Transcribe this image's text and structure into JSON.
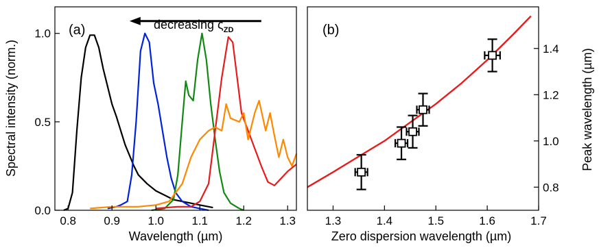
{
  "chart_data": [
    {
      "type": "line",
      "panel_label": "(a)",
      "xlabel": "Wavelength (µm)",
      "ylabel": "Spectral intensity (norm.)",
      "xlim": [
        0.77,
        1.32
      ],
      "ylim": [
        0,
        1.15
      ],
      "xticks": [
        0.8,
        0.9,
        1.0,
        1.1,
        1.2,
        1.3
      ],
      "xtick_labels": [
        "0.8",
        "0.9",
        "1.0",
        "1.1",
        "1.2",
        "1.3"
      ],
      "yticks": [
        0.0,
        0.5,
        1.0
      ],
      "ytick_labels": [
        "0.0",
        "0.5",
        "1.0"
      ],
      "grid": false,
      "annotation": {
        "text": "decreasing ς",
        "subscript": "ZD",
        "arrow": "left",
        "arrow_from": 1.24,
        "arrow_to": 0.94,
        "y": 1.12
      },
      "series": [
        {
          "color": "#000000",
          "points": [
            [
              0.79,
              0.0
            ],
            [
              0.8,
              0.01
            ],
            [
              0.81,
              0.1
            ],
            [
              0.82,
              0.45
            ],
            [
              0.83,
              0.75
            ],
            [
              0.84,
              0.92
            ],
            [
              0.85,
              0.99
            ],
            [
              0.86,
              0.99
            ],
            [
              0.87,
              0.92
            ],
            [
              0.88,
              0.8
            ],
            [
              0.89,
              0.7
            ],
            [
              0.9,
              0.6
            ],
            [
              0.91,
              0.53
            ],
            [
              0.92,
              0.45
            ],
            [
              0.93,
              0.37
            ],
            [
              0.94,
              0.31
            ],
            [
              0.95,
              0.25
            ],
            [
              0.96,
              0.2
            ],
            [
              0.98,
              0.15
            ],
            [
              1.0,
              0.11
            ],
            [
              1.02,
              0.085
            ],
            [
              1.04,
              0.06
            ],
            [
              1.06,
              0.05
            ],
            [
              1.08,
              0.04
            ],
            [
              1.1,
              0.03
            ],
            [
              1.12,
              0.02
            ],
            [
              1.13,
              0.015
            ]
          ]
        },
        {
          "color": "#0022dd",
          "points": [
            [
              0.89,
              0.01
            ],
            [
              0.91,
              0.02
            ],
            [
              0.92,
              0.03
            ],
            [
              0.935,
              0.05
            ],
            [
              0.945,
              0.2
            ],
            [
              0.955,
              0.5
            ],
            [
              0.965,
              0.9
            ],
            [
              0.975,
              1.0
            ],
            [
              0.985,
              0.95
            ],
            [
              0.995,
              0.72
            ],
            [
              1.005,
              0.6
            ],
            [
              1.015,
              0.45
            ],
            [
              1.025,
              0.3
            ],
            [
              1.035,
              0.18
            ],
            [
              1.045,
              0.1
            ],
            [
              1.06,
              0.05
            ],
            [
              1.08,
              0.02
            ],
            [
              1.1,
              0.01
            ],
            [
              1.12,
              0.0
            ]
          ]
        },
        {
          "color": "#118811",
          "points": [
            [
              0.99,
              0.0
            ],
            [
              1.02,
              0.01
            ],
            [
              1.04,
              0.06
            ],
            [
              1.05,
              0.2
            ],
            [
              1.06,
              0.5
            ],
            [
              1.068,
              0.73
            ],
            [
              1.075,
              0.65
            ],
            [
              1.085,
              0.62
            ],
            [
              1.095,
              0.85
            ],
            [
              1.105,
              1.0
            ],
            [
              1.115,
              0.85
            ],
            [
              1.125,
              0.6
            ],
            [
              1.135,
              0.4
            ],
            [
              1.145,
              0.22
            ],
            [
              1.155,
              0.1
            ],
            [
              1.17,
              0.04
            ],
            [
              1.19,
              0.01
            ],
            [
              1.2,
              0.0
            ]
          ]
        },
        {
          "color": "#e81a1a",
          "points": [
            [
              1.0,
              0.01
            ],
            [
              1.05,
              0.02
            ],
            [
              1.08,
              0.02
            ],
            [
              1.1,
              0.05
            ],
            [
              1.12,
              0.15
            ],
            [
              1.135,
              0.45
            ],
            [
              1.15,
              0.75
            ],
            [
              1.165,
              0.98
            ],
            [
              1.175,
              0.95
            ],
            [
              1.185,
              0.75
            ],
            [
              1.195,
              0.55
            ],
            [
              1.21,
              0.45
            ],
            [
              1.225,
              0.35
            ],
            [
              1.24,
              0.25
            ],
            [
              1.255,
              0.16
            ],
            [
              1.27,
              0.14
            ],
            [
              1.285,
              0.18
            ],
            [
              1.3,
              0.22
            ],
            [
              1.32,
              0.26
            ]
          ]
        },
        {
          "color": "#ff8800",
          "points": [
            [
              0.85,
              0.01
            ],
            [
              0.9,
              0.02
            ],
            [
              0.96,
              0.02
            ],
            [
              1.0,
              0.03
            ],
            [
              1.03,
              0.05
            ],
            [
              1.06,
              0.15
            ],
            [
              1.08,
              0.3
            ],
            [
              1.1,
              0.4
            ],
            [
              1.12,
              0.45
            ],
            [
              1.135,
              0.47
            ],
            [
              1.15,
              0.45
            ],
            [
              1.16,
              0.6
            ],
            [
              1.17,
              0.52
            ],
            [
              1.19,
              0.5
            ],
            [
              1.2,
              0.55
            ],
            [
              1.21,
              0.4
            ],
            [
              1.225,
              0.55
            ],
            [
              1.235,
              0.62
            ],
            [
              1.25,
              0.45
            ],
            [
              1.26,
              0.55
            ],
            [
              1.27,
              0.42
            ],
            [
              1.28,
              0.3
            ],
            [
              1.29,
              0.4
            ],
            [
              1.3,
              0.3
            ],
            [
              1.31,
              0.25
            ],
            [
              1.32,
              0.32
            ]
          ]
        }
      ]
    },
    {
      "type": "scatter",
      "panel_label": "(b)",
      "xlabel": "Zero dispersion wavelength (µm)",
      "ylabel": "Peak wavelength (µm)",
      "xlim": [
        1.25,
        1.7
      ],
      "ylim": [
        0.7,
        1.58
      ],
      "xticks": [
        1.3,
        1.4,
        1.5,
        1.6,
        1.7
      ],
      "xtick_labels": [
        "1.3",
        "1.4",
        "1.5",
        "1.6",
        "1.7"
      ],
      "yticks": [
        0.8,
        1.0,
        1.2,
        1.4
      ],
      "ytick_labels": [
        "0.8",
        "1.0",
        "1.2",
        "1.4"
      ],
      "y_axis_side": "right",
      "grid": false,
      "fit_line": {
        "color": "#e81a1a",
        "points": [
          [
            1.25,
            0.8
          ],
          [
            1.3,
            0.865
          ],
          [
            1.35,
            0.933
          ],
          [
            1.4,
            1.0
          ],
          [
            1.45,
            1.08
          ],
          [
            1.5,
            1.16
          ],
          [
            1.55,
            1.25
          ],
          [
            1.6,
            1.35
          ],
          [
            1.65,
            1.46
          ],
          [
            1.685,
            1.54
          ]
        ]
      },
      "points": [
        {
          "x": 1.355,
          "y": 0.865,
          "xerr": 0.012,
          "yerr": 0.075
        },
        {
          "x": 1.433,
          "y": 0.99,
          "xerr": 0.012,
          "yerr": 0.07
        },
        {
          "x": 1.455,
          "y": 1.04,
          "xerr": 0.012,
          "yerr": 0.07
        },
        {
          "x": 1.475,
          "y": 1.135,
          "xerr": 0.012,
          "yerr": 0.07
        },
        {
          "x": 1.61,
          "y": 1.37,
          "xerr": 0.015,
          "yerr": 0.07
        }
      ]
    }
  ]
}
